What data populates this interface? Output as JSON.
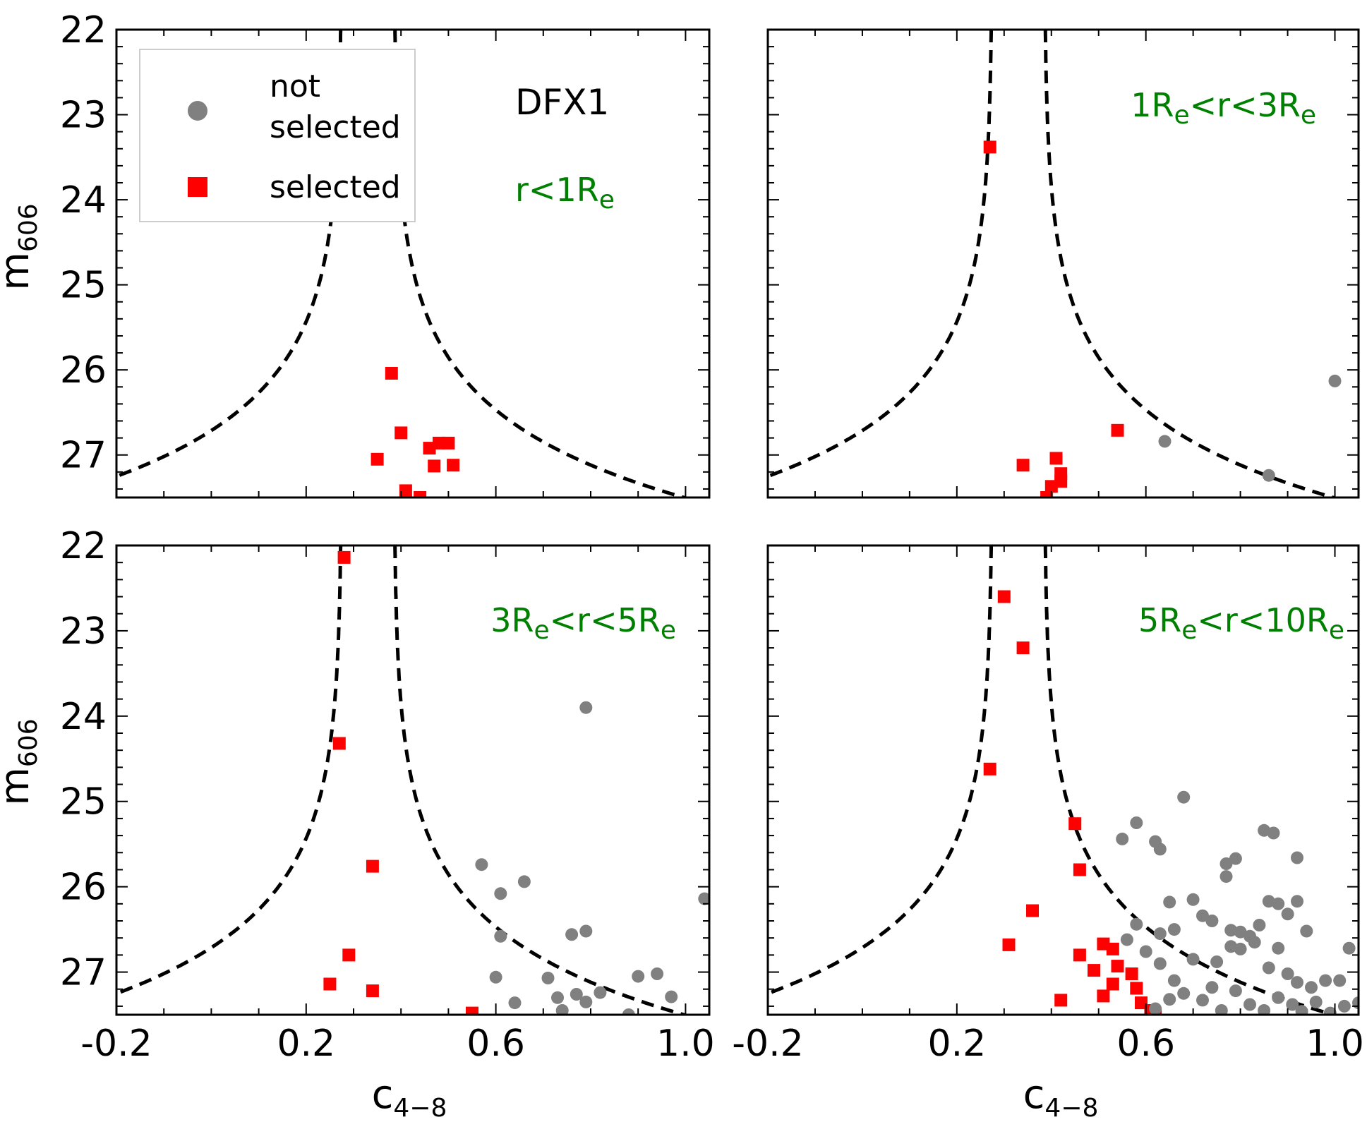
{
  "chart_data": [
    {
      "type": "scatter",
      "panel": "top-left",
      "label": "DFX1",
      "region": {
        "main": "r<1R",
        "sub": "e"
      },
      "region_color": "#008000",
      "xlabel": {
        "main": "c",
        "sub": "4−8"
      },
      "ylabel": {
        "main": "m",
        "sub": "606"
      },
      "xlim": [
        -0.2,
        1.05
      ],
      "ylim": [
        27.5,
        22
      ],
      "legend": {
        "position": "top-left",
        "entries": [
          {
            "label_line1": "not",
            "label_line2": "selected",
            "marker": "circle",
            "color": "#808080"
          },
          {
            "label": "selected",
            "marker": "square",
            "color": "#ff0000"
          }
        ]
      },
      "series": [
        {
          "name": "selected",
          "color": "#ff0000",
          "marker": "square",
          "points": [
            [
              0.38,
              26.04
            ],
            [
              0.4,
              26.74
            ],
            [
              0.35,
              27.05
            ],
            [
              0.41,
              27.42
            ],
            [
              0.44,
              27.5
            ],
            [
              0.46,
              26.92
            ],
            [
              0.47,
              27.13
            ],
            [
              0.48,
              26.86
            ],
            [
              0.5,
              26.86
            ],
            [
              0.51,
              27.12
            ]
          ]
        },
        {
          "name": "not selected",
          "color": "#808080",
          "marker": "circle",
          "points": []
        }
      ]
    },
    {
      "type": "scatter",
      "panel": "top-right",
      "region": {
        "p1": "1R",
        "s1": "e",
        "p2": "<r<3R",
        "s2": "e"
      },
      "region_color": "#008000",
      "xlabel": {
        "main": "c",
        "sub": "4−8"
      },
      "xlim": [
        -0.2,
        1.05
      ],
      "ylim": [
        27.5,
        22
      ],
      "series": [
        {
          "name": "selected",
          "color": "#ff0000",
          "marker": "square",
          "points": [
            [
              0.27,
              23.38
            ],
            [
              0.34,
              27.12
            ],
            [
              0.41,
              27.04
            ],
            [
              0.42,
              27.22
            ],
            [
              0.42,
              27.31
            ],
            [
              0.4,
              27.37
            ],
            [
              0.39,
              27.5
            ],
            [
              0.54,
              26.71
            ]
          ]
        },
        {
          "name": "not selected",
          "color": "#808080",
          "marker": "circle",
          "points": [
            [
              0.64,
              26.84
            ],
            [
              0.86,
              27.24
            ],
            [
              1.0,
              26.13
            ]
          ]
        }
      ]
    },
    {
      "type": "scatter",
      "panel": "bottom-left",
      "region": {
        "p1": "3R",
        "s1": "e",
        "p2": "<r<5R",
        "s2": "e"
      },
      "region_color": "#008000",
      "xlabel": {
        "main": "c",
        "sub": "4−8"
      },
      "ylabel": {
        "main": "m",
        "sub": "606"
      },
      "x_ticks": [
        -0.2,
        0.2,
        0.6,
        1.0
      ],
      "x_ticklabels": [
        "-0.2",
        "0.2",
        "0.6",
        "1.0"
      ],
      "y_ticks": [
        22,
        23,
        24,
        25,
        26,
        27
      ],
      "y_ticklabels": [
        "22",
        "23",
        "24",
        "25",
        "26",
        "27"
      ],
      "xlim": [
        -0.2,
        1.05
      ],
      "ylim": [
        27.5,
        22
      ],
      "series": [
        {
          "name": "selected",
          "color": "#ff0000",
          "marker": "square",
          "points": [
            [
              0.28,
              22.14
            ],
            [
              0.27,
              24.32
            ],
            [
              0.34,
              25.76
            ],
            [
              0.29,
              26.8
            ],
            [
              0.25,
              27.14
            ],
            [
              0.34,
              27.22
            ],
            [
              0.55,
              27.48
            ]
          ]
        },
        {
          "name": "not selected",
          "color": "#808080",
          "marker": "circle",
          "points": [
            [
              0.57,
              25.74
            ],
            [
              0.66,
              25.94
            ],
            [
              0.61,
              26.08
            ],
            [
              0.61,
              26.58
            ],
            [
              0.76,
              26.56
            ],
            [
              0.79,
              26.52
            ],
            [
              0.79,
              23.9
            ],
            [
              0.6,
              27.06
            ],
            [
              0.64,
              27.36
            ],
            [
              0.71,
              27.07
            ],
            [
              0.73,
              27.3
            ],
            [
              0.74,
              27.45
            ],
            [
              0.77,
              27.26
            ],
            [
              0.79,
              27.35
            ],
            [
              0.82,
              27.24
            ],
            [
              0.9,
              27.05
            ],
            [
              0.94,
              27.02
            ],
            [
              0.97,
              27.29
            ],
            [
              1.04,
              26.14
            ],
            [
              0.88,
              27.5
            ]
          ]
        }
      ]
    },
    {
      "type": "scatter",
      "panel": "bottom-right",
      "region": {
        "p1": "5R",
        "s1": "e",
        "p2": "<r<10R",
        "s2": "e"
      },
      "region_color": "#008000",
      "xlabel": {
        "main": "c",
        "sub": "4−8"
      },
      "x_ticks": [
        -0.2,
        0.2,
        0.6,
        1.0
      ],
      "x_ticklabels": [
        "-0.2",
        "0.2",
        "0.6",
        "1.0"
      ],
      "xlim": [
        -0.2,
        1.05
      ],
      "ylim": [
        27.5,
        22
      ],
      "series": [
        {
          "name": "selected",
          "color": "#ff0000",
          "marker": "square",
          "points": [
            [
              0.3,
              22.6
            ],
            [
              0.34,
              23.2
            ],
            [
              0.27,
              24.62
            ],
            [
              0.45,
              25.26
            ],
            [
              0.46,
              25.8
            ],
            [
              0.36,
              26.28
            ],
            [
              0.31,
              26.68
            ],
            [
              0.46,
              26.8
            ],
            [
              0.49,
              26.98
            ],
            [
              0.51,
              26.67
            ],
            [
              0.53,
              26.73
            ],
            [
              0.54,
              26.93
            ],
            [
              0.53,
              27.14
            ],
            [
              0.51,
              27.28
            ],
            [
              0.42,
              27.33
            ],
            [
              0.57,
              27.02
            ],
            [
              0.58,
              27.19
            ],
            [
              0.59,
              27.36
            ],
            [
              0.61,
              27.45
            ],
            [
              0.62,
              27.5
            ]
          ]
        },
        {
          "name": "not selected",
          "color": "#808080",
          "marker": "circle",
          "points": [
            [
              0.55,
              25.44
            ],
            [
              0.58,
              25.25
            ],
            [
              0.62,
              25.47
            ],
            [
              0.63,
              25.56
            ],
            [
              0.68,
              24.95
            ],
            [
              0.77,
              25.73
            ],
            [
              0.77,
              25.88
            ],
            [
              0.79,
              25.67
            ],
            [
              0.85,
              25.34
            ],
            [
              0.87,
              25.37
            ],
            [
              0.92,
              25.66
            ],
            [
              0.58,
              26.44
            ],
            [
              0.63,
              26.55
            ],
            [
              0.65,
              26.18
            ],
            [
              0.66,
              26.5
            ],
            [
              0.7,
              26.15
            ],
            [
              0.72,
              26.34
            ],
            [
              0.74,
              26.4
            ],
            [
              0.78,
              26.51
            ],
            [
              0.8,
              26.53
            ],
            [
              0.82,
              26.58
            ],
            [
              0.84,
              26.45
            ],
            [
              0.86,
              26.17
            ],
            [
              0.88,
              26.2
            ],
            [
              0.9,
              26.32
            ],
            [
              0.92,
              26.17
            ],
            [
              0.94,
              26.52
            ],
            [
              0.75,
              26.88
            ],
            [
              0.78,
              26.7
            ],
            [
              0.8,
              26.73
            ],
            [
              0.83,
              26.65
            ],
            [
              0.86,
              26.95
            ],
            [
              0.88,
              26.72
            ],
            [
              0.9,
              27.02
            ],
            [
              0.92,
              27.12
            ],
            [
              0.95,
              27.18
            ],
            [
              0.98,
              27.1
            ],
            [
              1.01,
              27.1
            ],
            [
              1.03,
              26.72
            ],
            [
              0.56,
              26.62
            ],
            [
              0.6,
              26.76
            ],
            [
              0.63,
              26.9
            ],
            [
              0.66,
              27.1
            ],
            [
              0.68,
              27.25
            ],
            [
              0.7,
              26.85
            ],
            [
              0.72,
              27.33
            ],
            [
              0.74,
              27.18
            ],
            [
              0.76,
              27.45
            ],
            [
              0.79,
              27.22
            ],
            [
              0.82,
              27.38
            ],
            [
              0.85,
              27.45
            ],
            [
              0.88,
              27.3
            ],
            [
              0.91,
              27.38
            ],
            [
              0.93,
              27.46
            ],
            [
              0.96,
              27.35
            ],
            [
              0.99,
              27.48
            ],
            [
              1.02,
              27.4
            ],
            [
              1.05,
              27.36
            ],
            [
              0.62,
              27.43
            ],
            [
              0.65,
              27.32
            ]
          ]
        }
      ]
    }
  ]
}
